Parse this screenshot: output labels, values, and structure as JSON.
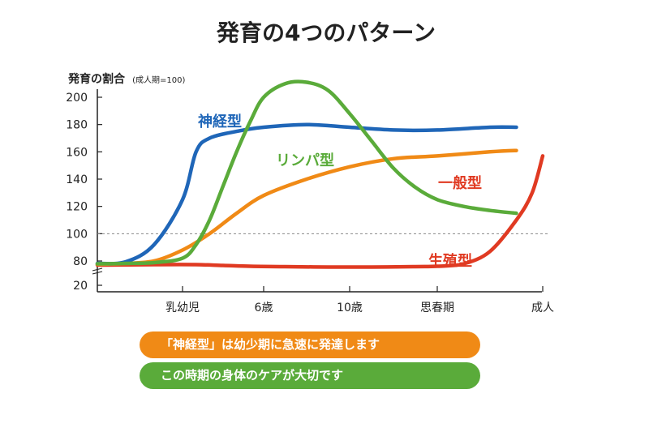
{
  "chart_data": {
    "type": "line",
    "title": "発育の4つのパターン",
    "ylabel": "発育の割合",
    "ylabel_note": "(成人期=100)",
    "yticks": [
      200,
      180,
      160,
      140,
      120,
      100,
      80,
      20
    ],
    "reference_line": 100,
    "x_categories": [
      "乳幼児",
      "6歳",
      "10歳",
      "思春期",
      "成人"
    ],
    "x_positions": [
      0,
      6,
      10,
      14,
      18
    ],
    "series": [
      {
        "name": "神経型",
        "color": "#1f66b8",
        "points": [
          [
            -3,
            74
          ],
          [
            -2,
            78
          ],
          [
            -1,
            92
          ],
          [
            0,
            125
          ],
          [
            1,
            160
          ],
          [
            2,
            170
          ],
          [
            4,
            175
          ],
          [
            6,
            178
          ],
          [
            8,
            180
          ],
          [
            10,
            178
          ],
          [
            12,
            176
          ],
          [
            14,
            176
          ],
          [
            16,
            178
          ],
          [
            17,
            178
          ]
        ]
      },
      {
        "name": "リンパ型",
        "color": "#5aab3a",
        "points": [
          [
            -3,
            73
          ],
          [
            -2,
            74
          ],
          [
            -1,
            76
          ],
          [
            0,
            82
          ],
          [
            1,
            92
          ],
          [
            2,
            110
          ],
          [
            3,
            135
          ],
          [
            4,
            160
          ],
          [
            5,
            182
          ],
          [
            6,
            200
          ],
          [
            7,
            210
          ],
          [
            8,
            211
          ],
          [
            9,
            205
          ],
          [
            10,
            188
          ],
          [
            11,
            168
          ],
          [
            12,
            148
          ],
          [
            13,
            134
          ],
          [
            14,
            125
          ],
          [
            15,
            120
          ],
          [
            16,
            117
          ],
          [
            17,
            115
          ]
        ]
      },
      {
        "name": "一般型",
        "color": "#f08a16",
        "points": [
          [
            -3,
            72
          ],
          [
            -2,
            74
          ],
          [
            -1,
            80
          ],
          [
            0,
            88
          ],
          [
            2,
            100
          ],
          [
            4,
            115
          ],
          [
            6,
            128
          ],
          [
            8,
            140
          ],
          [
            10,
            149
          ],
          [
            12,
            155
          ],
          [
            14,
            157
          ],
          [
            16,
            160
          ],
          [
            17,
            161
          ]
        ]
      },
      {
        "name": "生殖型",
        "color": "#e03a22",
        "points": [
          [
            -3,
            70
          ],
          [
            -1,
            71
          ],
          [
            1,
            71
          ],
          [
            3,
            69
          ],
          [
            5,
            67
          ],
          [
            7,
            66
          ],
          [
            9,
            65
          ],
          [
            11,
            65
          ],
          [
            13,
            66
          ],
          [
            14,
            67
          ],
          [
            15,
            73
          ],
          [
            16,
            87
          ],
          [
            17,
            110
          ],
          [
            17.6,
            130
          ],
          [
            18,
            157
          ]
        ]
      }
    ],
    "grid": false
  },
  "notes": [
    {
      "text": "「神経型」は幼少期に急速に発達します",
      "color": "#f08a16"
    },
    {
      "text": "この時期の身体のケアが大切です",
      "color": "#5aab3a"
    }
  ]
}
